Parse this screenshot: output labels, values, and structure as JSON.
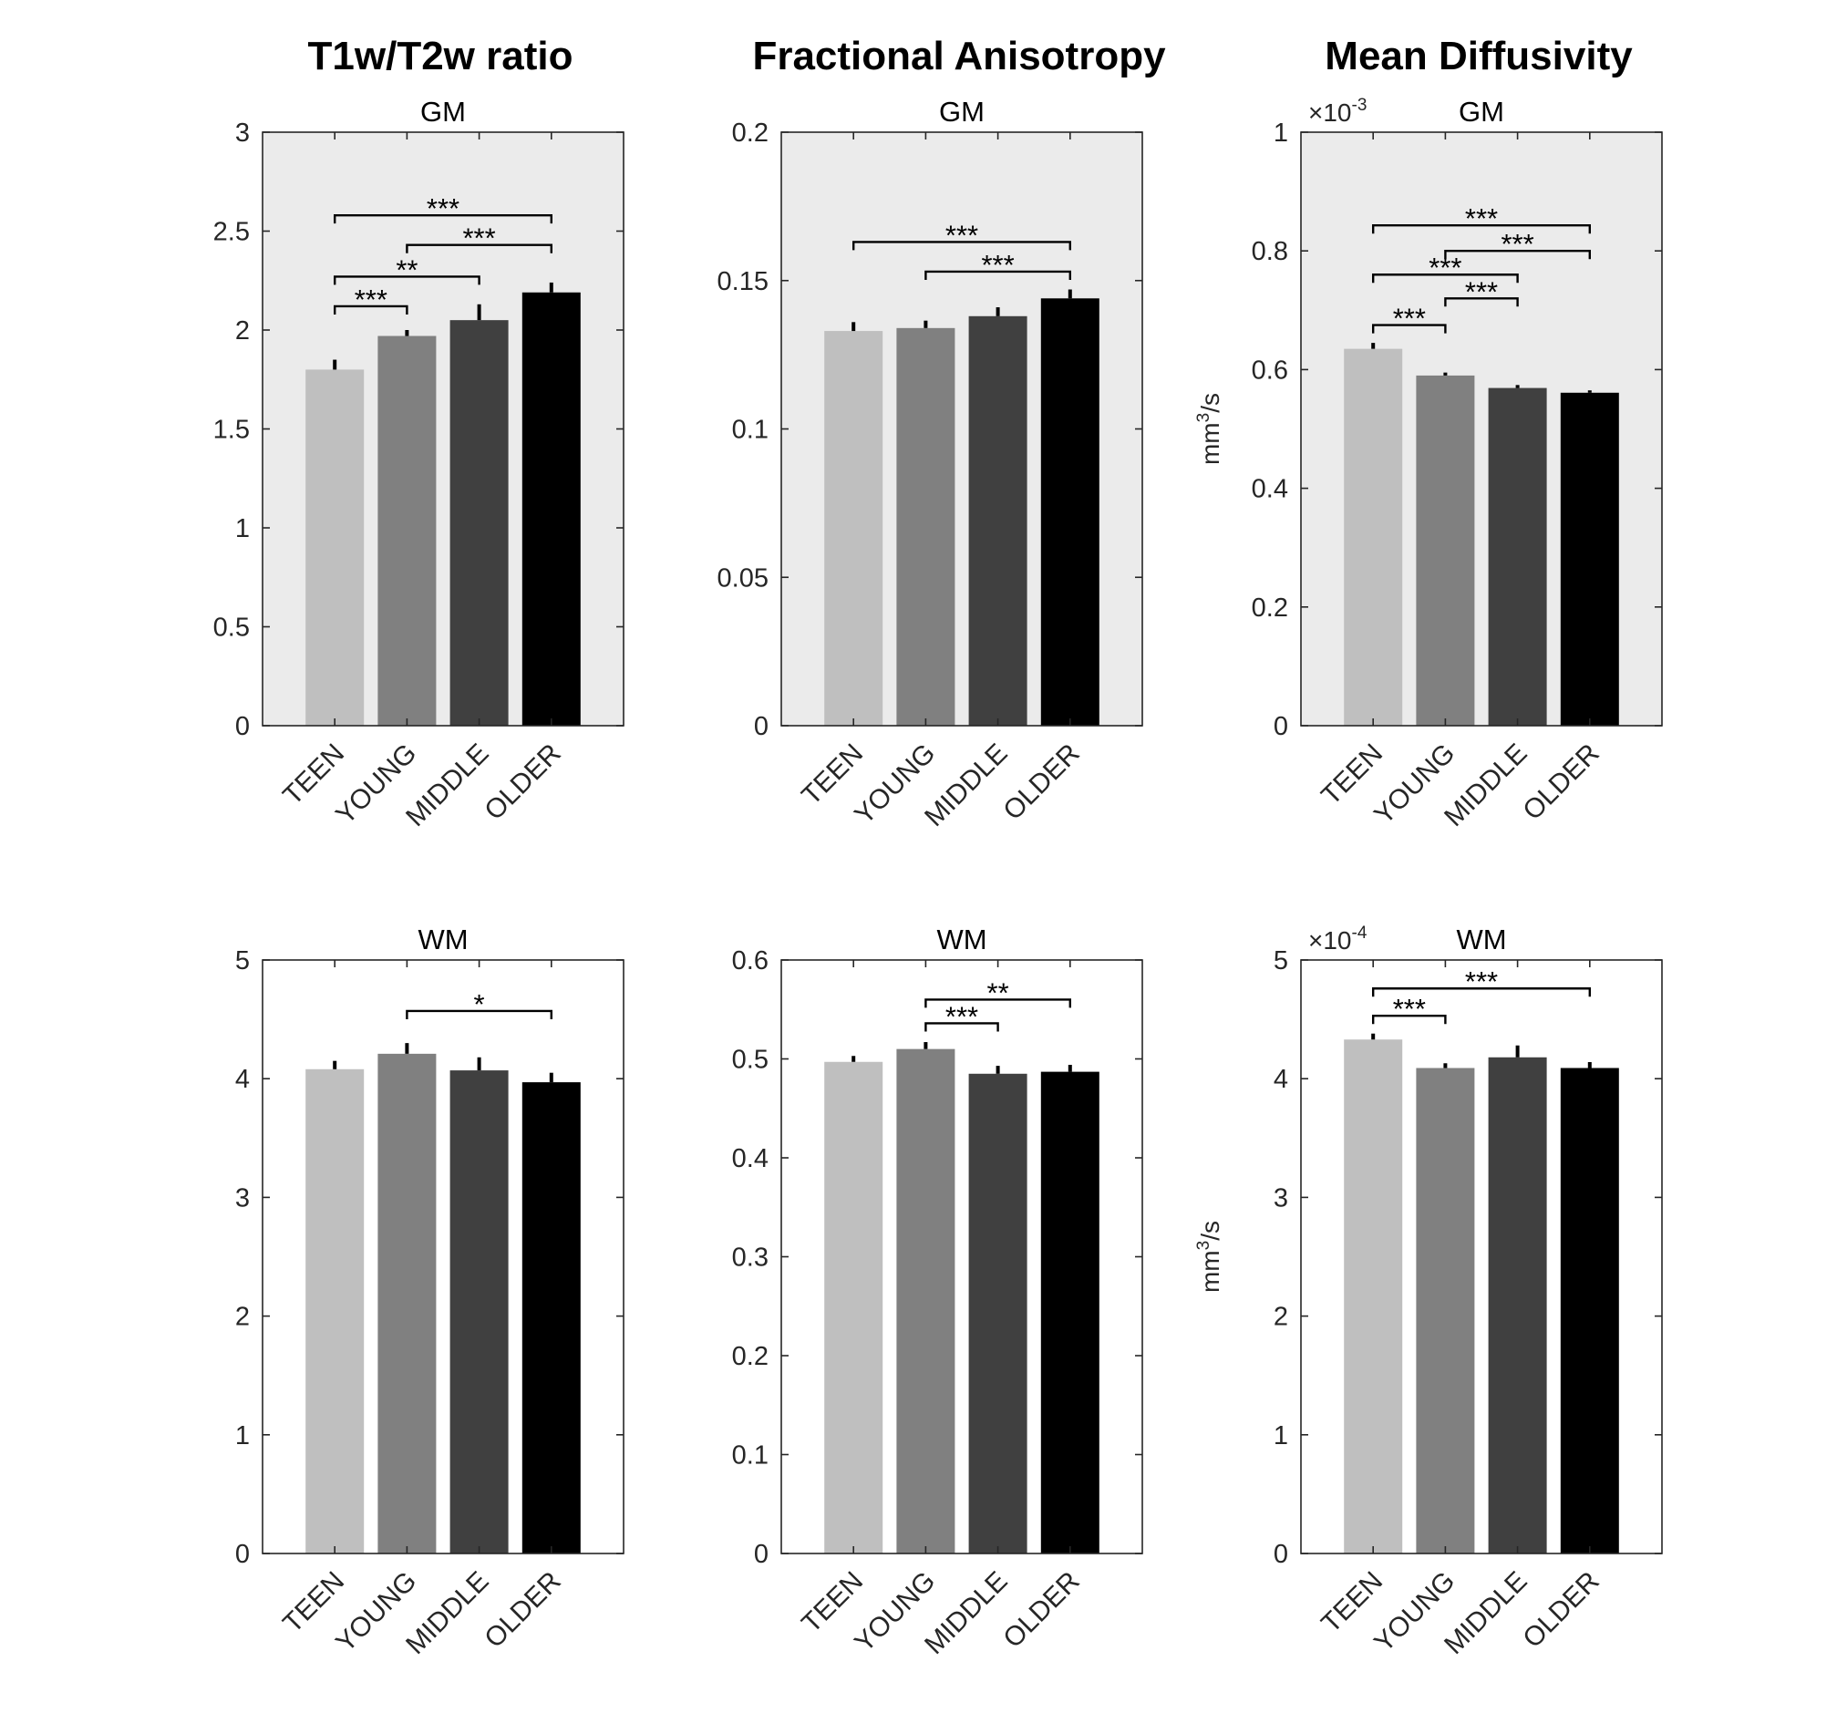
{
  "column_titles": [
    "T1w/T2w ratio",
    "Fractional Anisotropy",
    "Mean Diffusivity"
  ],
  "colors": {
    "background_gm": "#ebebeb",
    "background_wm": "#ffffff",
    "axis": "#262626",
    "bars": [
      "#bfbfbf",
      "#808080",
      "#404040",
      "#000000"
    ]
  },
  "chart_data": [
    {
      "type": "bar",
      "measure": "T1w/T2w ratio",
      "title": "GM",
      "categories": [
        "TEEN",
        "YOUNG",
        "MIDDLE",
        "OLDER"
      ],
      "values": [
        1.8,
        1.97,
        2.05,
        2.19
      ],
      "errors": [
        0.05,
        0.03,
        0.08,
        0.05
      ],
      "ylim": [
        0,
        3
      ],
      "yticks": [
        0,
        0.5,
        1,
        1.5,
        2,
        2.5,
        3
      ],
      "ytick_labels": [
        "0",
        "0.5",
        "1",
        "1.5",
        "2",
        "2.5",
        "3"
      ],
      "ylabel": "",
      "exponent": null,
      "significance": [
        {
          "from": 0,
          "to": 1,
          "level": 2.12,
          "stars": "***"
        },
        {
          "from": 0,
          "to": 2,
          "level": 2.27,
          "stars": "**"
        },
        {
          "from": 1,
          "to": 3,
          "level": 2.43,
          "stars": "***"
        },
        {
          "from": 0,
          "to": 3,
          "level": 2.58,
          "stars": "***"
        }
      ]
    },
    {
      "type": "bar",
      "measure": "Fractional Anisotropy",
      "title": "GM",
      "categories": [
        "TEEN",
        "YOUNG",
        "MIDDLE",
        "OLDER"
      ],
      "values": [
        0.133,
        0.134,
        0.138,
        0.144
      ],
      "errors": [
        0.003,
        0.0025,
        0.003,
        0.003
      ],
      "ylim": [
        0,
        0.2
      ],
      "yticks": [
        0,
        0.05,
        0.1,
        0.15,
        0.2
      ],
      "ytick_labels": [
        "0",
        "0.05",
        "0.1",
        "0.15",
        "0.2"
      ],
      "ylabel": "",
      "exponent": null,
      "significance": [
        {
          "from": 1,
          "to": 3,
          "level": 0.153,
          "stars": "***"
        },
        {
          "from": 0,
          "to": 3,
          "level": 0.163,
          "stars": "***"
        }
      ]
    },
    {
      "type": "bar",
      "measure": "Mean Diffusivity",
      "title": "GM",
      "categories": [
        "TEEN",
        "YOUNG",
        "MIDDLE",
        "OLDER"
      ],
      "values": [
        0.635,
        0.59,
        0.569,
        0.561
      ],
      "errors": [
        0.01,
        0.005,
        0.005,
        0.004
      ],
      "ylim": [
        0,
        1
      ],
      "yticks": [
        0,
        0.2,
        0.4,
        0.6,
        0.8,
        1
      ],
      "ytick_labels": [
        "0",
        "0.2",
        "0.4",
        "0.6",
        "0.8",
        "1"
      ],
      "ylabel": "mm³/s",
      "ylabel_base": "mm",
      "ylabel_sup": "3",
      "ylabel_tail": "/s",
      "exponent": {
        "base": "×10",
        "power": "-3"
      },
      "significance": [
        {
          "from": 0,
          "to": 1,
          "level": 0.675,
          "stars": "***"
        },
        {
          "from": 1,
          "to": 2,
          "level": 0.72,
          "stars": "***"
        },
        {
          "from": 0,
          "to": 2,
          "level": 0.76,
          "stars": "***"
        },
        {
          "from": 1,
          "to": 3,
          "level": 0.8,
          "stars": "***"
        },
        {
          "from": 0,
          "to": 3,
          "level": 0.843,
          "stars": "***"
        }
      ]
    },
    {
      "type": "bar",
      "measure": "T1w/T2w ratio",
      "title": "WM",
      "categories": [
        "TEEN",
        "YOUNG",
        "MIDDLE",
        "OLDER"
      ],
      "values": [
        4.08,
        4.21,
        4.07,
        3.97
      ],
      "errors": [
        0.07,
        0.09,
        0.11,
        0.08
      ],
      "ylim": [
        0,
        5
      ],
      "yticks": [
        0,
        1,
        2,
        3,
        4,
        5
      ],
      "ytick_labels": [
        "0",
        "1",
        "2",
        "3",
        "4",
        "5"
      ],
      "ylabel": "",
      "exponent": null,
      "significance": [
        {
          "from": 1,
          "to": 3,
          "level": 4.57,
          "stars": "*"
        }
      ]
    },
    {
      "type": "bar",
      "measure": "Fractional Anisotropy",
      "title": "WM",
      "categories": [
        "TEEN",
        "YOUNG",
        "MIDDLE",
        "OLDER"
      ],
      "values": [
        0.497,
        0.51,
        0.485,
        0.487
      ],
      "errors": [
        0.006,
        0.007,
        0.008,
        0.007
      ],
      "ylim": [
        0,
        0.6
      ],
      "yticks": [
        0,
        0.1,
        0.2,
        0.3,
        0.4,
        0.5,
        0.6
      ],
      "ytick_labels": [
        "0",
        "0.1",
        "0.2",
        "0.3",
        "0.4",
        "0.5",
        "0.6"
      ],
      "ylabel": "",
      "exponent": null,
      "significance": [
        {
          "from": 1,
          "to": 2,
          "level": 0.536,
          "stars": "***"
        },
        {
          "from": 1,
          "to": 3,
          "level": 0.56,
          "stars": "**"
        }
      ]
    },
    {
      "type": "bar",
      "measure": "Mean Diffusivity",
      "title": "WM",
      "categories": [
        "TEEN",
        "YOUNG",
        "MIDDLE",
        "OLDER"
      ],
      "values": [
        4.33,
        4.09,
        4.18,
        4.09
      ],
      "errors": [
        0.05,
        0.04,
        0.1,
        0.05
      ],
      "ylim": [
        0,
        5
      ],
      "yticks": [
        0,
        1,
        2,
        3,
        4,
        5
      ],
      "ytick_labels": [
        "0",
        "1",
        "2",
        "3",
        "4",
        "5"
      ],
      "ylabel": "mm³/s",
      "ylabel_base": "mm",
      "ylabel_sup": "3",
      "ylabel_tail": "/s",
      "exponent": {
        "base": "×10",
        "power": "-4"
      },
      "significance": [
        {
          "from": 0,
          "to": 1,
          "level": 4.53,
          "stars": "***"
        },
        {
          "from": 0,
          "to": 3,
          "level": 4.76,
          "stars": "***"
        }
      ]
    }
  ]
}
